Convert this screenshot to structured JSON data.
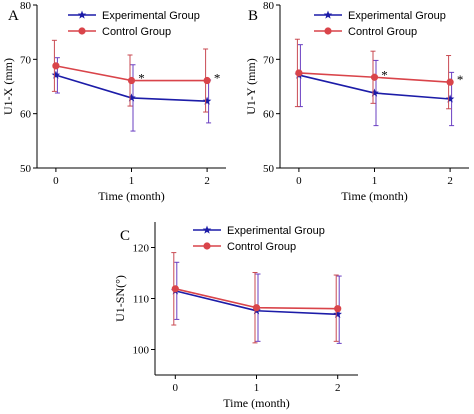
{
  "colors": {
    "experimental": "#1c1ca8",
    "control": "#d9444a",
    "error_exp": "#6a3fc2",
    "error_ctrl": "#c94a52"
  },
  "legend_labels": {
    "experimental": "Experimental Group",
    "control": "Control Group"
  },
  "chart_data": [
    {
      "panel": "A",
      "type": "line",
      "ylabel": "U1-X (mm)",
      "xlabel": "Time (month)",
      "ylim": [
        50,
        80
      ],
      "yticks": [
        50,
        60,
        70,
        80
      ],
      "x": [
        0,
        1,
        2
      ],
      "xticks": [
        "0",
        "1",
        "2"
      ],
      "legend": "top",
      "significance": [
        null,
        "*",
        "*"
      ],
      "series": [
        {
          "name": "Experimental Group",
          "values": [
            67.1,
            62.9,
            62.3
          ],
          "err_low": [
            63.8,
            56.8,
            58.3
          ],
          "err_high": [
            70.3,
            69.0,
            66.2
          ]
        },
        {
          "name": "Control Group",
          "values": [
            68.8,
            66.1,
            66.1
          ],
          "err_low": [
            64.1,
            61.4,
            60.3
          ],
          "err_high": [
            73.5,
            70.8,
            71.9
          ]
        }
      ]
    },
    {
      "panel": "B",
      "type": "line",
      "ylabel": "U1-Y (mm)",
      "xlabel": "Time (month)",
      "ylim": [
        50,
        80
      ],
      "yticks": [
        50,
        60,
        70,
        80
      ],
      "x": [
        0,
        1,
        2
      ],
      "xticks": [
        "0",
        "1",
        "2"
      ],
      "legend": "top",
      "significance": [
        null,
        "*",
        "*"
      ],
      "series": [
        {
          "name": "Experimental Group",
          "values": [
            67.1,
            63.8,
            62.7
          ],
          "err_low": [
            61.3,
            57.8,
            57.8
          ],
          "err_high": [
            72.7,
            69.8,
            67.6
          ]
        },
        {
          "name": "Control Group",
          "values": [
            67.5,
            66.7,
            65.8
          ],
          "err_low": [
            61.3,
            61.9,
            60.9
          ],
          "err_high": [
            73.7,
            71.5,
            70.7
          ]
        }
      ]
    },
    {
      "panel": "C",
      "type": "line",
      "ylabel": "U1-SN(°)",
      "xlabel": "Time (month)",
      "ylim": [
        95,
        125
      ],
      "yticks": [
        100,
        110,
        120
      ],
      "x": [
        0,
        1,
        2
      ],
      "xticks": [
        "0",
        "1",
        "2"
      ],
      "legend": "top",
      "significance": [
        null,
        null,
        null
      ],
      "series": [
        {
          "name": "Experimental Group",
          "values": [
            111.5,
            107.6,
            106.9
          ],
          "err_low": [
            105.9,
            101.6,
            101.2
          ],
          "err_high": [
            117.1,
            114.8,
            114.4
          ]
        },
        {
          "name": "Control Group",
          "values": [
            111.9,
            108.2,
            108.0
          ],
          "err_low": [
            104.8,
            101.3,
            101.6
          ],
          "err_high": [
            119.0,
            115.1,
            114.6
          ]
        }
      ]
    }
  ]
}
